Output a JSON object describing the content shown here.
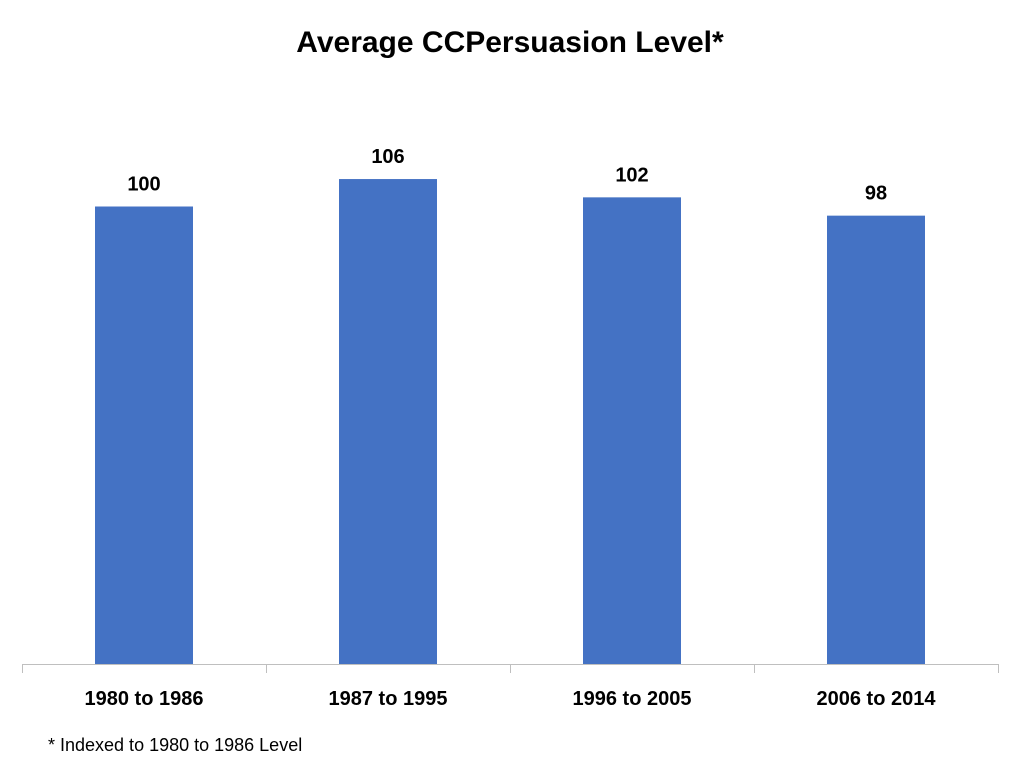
{
  "chart_data": {
    "type": "bar",
    "title": "Average CCPersuasion Level*",
    "categories": [
      "1980 to 1986",
      "1987 to 1995",
      "1996 to 2005",
      "2006 to 2014"
    ],
    "values": [
      100,
      106,
      102,
      98
    ],
    "data_labels": [
      "100",
      "106",
      "102",
      "98"
    ],
    "ylim": [
      0,
      120
    ],
    "grid": false,
    "legend": "none",
    "bar_color": "#4472C4",
    "axis_color": "#BFBFBF",
    "footnote": "* Indexed to 1980 to 1986 Level"
  }
}
